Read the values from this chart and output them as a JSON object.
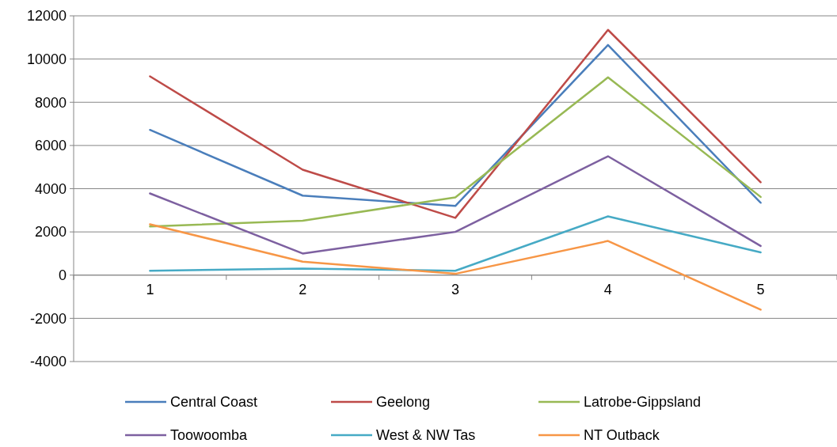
{
  "chart_data": {
    "type": "line",
    "categories": [
      "1",
      "2",
      "3",
      "4",
      "5"
    ],
    "series": [
      {
        "name": "Central Coast",
        "color": "#4a7ebb",
        "values": [
          6720,
          3680,
          3200,
          10650,
          3350
        ]
      },
      {
        "name": "Geelong",
        "color": "#be4b48",
        "values": [
          9200,
          4880,
          2650,
          11350,
          4300
        ]
      },
      {
        "name": "Latrobe-Gippsland",
        "color": "#98b954",
        "values": [
          2250,
          2520,
          3600,
          9150,
          3620
        ]
      },
      {
        "name": "Toowoomba",
        "color": "#7d60a0",
        "values": [
          3780,
          1000,
          2000,
          5500,
          1350
        ]
      },
      {
        "name": "West & NW Tas",
        "color": "#46aac5",
        "values": [
          200,
          300,
          200,
          2720,
          1050
        ]
      },
      {
        "name": "NT Outback",
        "color": "#f79646",
        "values": [
          2350,
          620,
          60,
          1580,
          -1600
        ]
      }
    ],
    "ylim": [
      -4000,
      12000
    ],
    "yticks": [
      -4000,
      -2000,
      0,
      2000,
      4000,
      6000,
      8000,
      10000,
      12000
    ],
    "grid": "y",
    "legend": "bottom",
    "marker": "none",
    "line_style": "solid"
  }
}
